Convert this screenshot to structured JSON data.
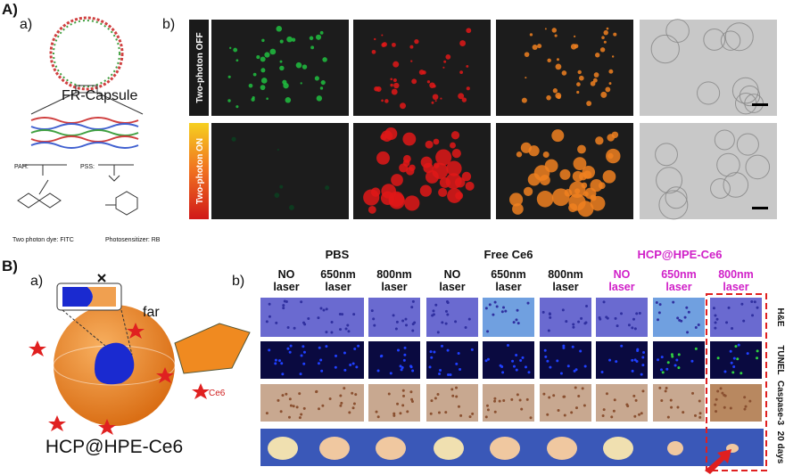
{
  "panel_a": {
    "label": "A)",
    "sub_a": "a)",
    "capsule_label": "FR-Capsule",
    "pah": "PAH:",
    "pss": "PSS:",
    "dye": "Two photon dye: FITC",
    "sensitizer": "Photosensitizer: RB",
    "sub_b": "b)",
    "rows": [
      "Two-photon OFF",
      "Two-photon ON"
    ]
  },
  "panel_b": {
    "label": "B)",
    "sub_a": "a)",
    "far": "far",
    "ce6": "Ce6",
    "particle": "HCP@HPE-Ce6",
    "sub_b": "b)",
    "groups": [
      "PBS",
      "Free Ce6",
      "HCP@HPE-Ce6"
    ],
    "columns": [
      [
        "NO",
        "laser"
      ],
      [
        "650nm",
        "laser"
      ],
      [
        "800nm",
        "laser"
      ],
      [
        "NO",
        "laser"
      ],
      [
        "650nm",
        "laser"
      ],
      [
        "800nm",
        "laser"
      ],
      [
        "NO",
        "laser"
      ],
      [
        "650nm",
        "laser"
      ],
      [
        "800nm",
        "laser"
      ]
    ],
    "rows": [
      "H&E",
      "TUNEL",
      "Caspase-3",
      "20 days"
    ]
  }
}
